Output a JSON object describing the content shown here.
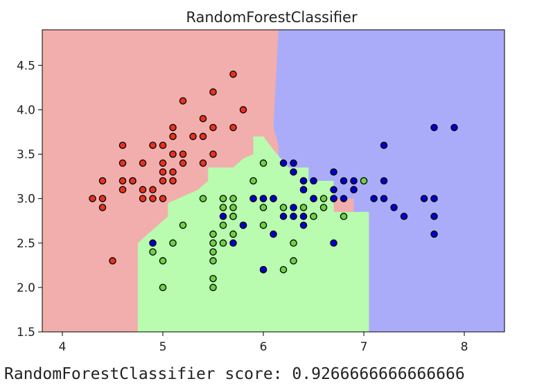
{
  "chart_data": {
    "type": "scatter",
    "title": "RandomForestClassifier",
    "xlabel": "",
    "ylabel": "",
    "xlim": [
      3.8,
      8.4
    ],
    "ylim": [
      1.5,
      4.9
    ],
    "x_ticks": [
      "4",
      "5",
      "6",
      "7",
      "8"
    ],
    "y_ticks": [
      "1.5",
      "2.0",
      "2.5",
      "3.0",
      "3.5",
      "4.0",
      "4.5"
    ],
    "grid": false,
    "legend": "none",
    "region_colors": {
      "class0": "#f2aeac",
      "class1": "#b9fbaf",
      "class2": "#abacf9"
    },
    "point_colors": {
      "class0": "#e8311e",
      "class1": "#6fd145",
      "class2": "#0000cc"
    },
    "decision_regions": {
      "class1": [
        [
          4.75,
          1.5
        ],
        [
          7.05,
          1.5
        ],
        [
          7.05,
          2.85
        ],
        [
          6.7,
          2.85
        ],
        [
          6.7,
          3.2
        ],
        [
          6.45,
          3.2
        ],
        [
          6.45,
          3.35
        ],
        [
          6.25,
          3.35
        ],
        [
          6.1,
          3.55
        ],
        [
          6.0,
          3.7
        ],
        [
          5.9,
          3.7
        ],
        [
          5.9,
          3.5
        ],
        [
          5.8,
          3.45
        ],
        [
          5.7,
          3.35
        ],
        [
          5.45,
          3.35
        ],
        [
          5.45,
          3.2
        ],
        [
          5.35,
          3.1
        ],
        [
          5.05,
          2.95
        ],
        [
          5.05,
          2.8
        ],
        [
          4.95,
          2.7
        ],
        [
          4.85,
          2.6
        ],
        [
          4.75,
          2.5
        ]
      ],
      "class2": [
        [
          6.15,
          4.9
        ],
        [
          8.4,
          4.9
        ],
        [
          8.4,
          1.5
        ],
        [
          7.05,
          1.5
        ],
        [
          7.05,
          2.85
        ],
        [
          6.9,
          2.85
        ],
        [
          6.9,
          3.0
        ],
        [
          6.55,
          3.0
        ],
        [
          6.55,
          2.5
        ],
        [
          6.2,
          2.5
        ],
        [
          6.2,
          2.9
        ],
        [
          5.85,
          2.9
        ],
        [
          5.85,
          3.15
        ],
        [
          6.15,
          3.3
        ],
        [
          6.15,
          3.6
        ],
        [
          6.1,
          3.8
        ]
      ]
    },
    "series": [
      {
        "name": "",
        "class": "class0",
        "points": [
          [
            5.1,
            3.5
          ],
          [
            4.9,
            3.0
          ],
          [
            4.7,
            3.2
          ],
          [
            4.6,
            3.1
          ],
          [
            5.0,
            3.6
          ],
          [
            5.4,
            3.9
          ],
          [
            4.6,
            3.4
          ],
          [
            5.0,
            3.4
          ],
          [
            4.4,
            2.9
          ],
          [
            4.9,
            3.1
          ],
          [
            5.4,
            3.7
          ],
          [
            4.8,
            3.4
          ],
          [
            4.8,
            3.0
          ],
          [
            4.3,
            3.0
          ],
          [
            5.8,
            4.0
          ],
          [
            5.7,
            4.4
          ],
          [
            5.1,
            3.8
          ],
          [
            5.7,
            3.8
          ],
          [
            5.4,
            3.4
          ],
          [
            5.1,
            3.7
          ],
          [
            4.6,
            3.6
          ],
          [
            5.1,
            3.3
          ],
          [
            4.8,
            3.1
          ],
          [
            5.0,
            3.2
          ],
          [
            5.2,
            3.5
          ],
          [
            5.2,
            3.4
          ],
          [
            4.7,
            3.2
          ],
          [
            5.2,
            4.1
          ],
          [
            5.5,
            4.2
          ],
          [
            5.0,
            3.0
          ],
          [
            5.5,
            3.5
          ],
          [
            4.4,
            3.0
          ],
          [
            4.5,
            2.3
          ],
          [
            4.4,
            3.2
          ],
          [
            5.3,
            3.7
          ],
          [
            5.1,
            3.2
          ],
          [
            5.0,
            3.3
          ],
          [
            4.6,
            3.2
          ],
          [
            4.9,
            3.6
          ],
          [
            5.5,
            3.8
          ]
        ]
      },
      {
        "name": "",
        "class": "class1",
        "points": [
          [
            5.5,
            2.3
          ],
          [
            5.7,
            2.8
          ],
          [
            4.9,
            2.4
          ],
          [
            5.2,
            2.7
          ],
          [
            5.0,
            2.0
          ],
          [
            5.9,
            3.0
          ],
          [
            6.0,
            2.2
          ],
          [
            5.6,
            2.9
          ],
          [
            5.6,
            3.0
          ],
          [
            5.8,
            2.7
          ],
          [
            6.2,
            2.2
          ],
          [
            5.6,
            2.5
          ],
          [
            5.9,
            3.2
          ],
          [
            6.3,
            2.5
          ],
          [
            6.6,
            3.0
          ],
          [
            6.8,
            2.8
          ],
          [
            6.7,
            3.0
          ],
          [
            6.0,
            2.9
          ],
          [
            5.7,
            2.6
          ],
          [
            5.5,
            2.4
          ],
          [
            5.8,
            2.7
          ],
          [
            5.4,
            3.0
          ],
          [
            6.0,
            3.4
          ],
          [
            6.3,
            2.3
          ],
          [
            5.6,
            3.0
          ],
          [
            5.5,
            2.5
          ],
          [
            5.5,
            2.6
          ],
          [
            5.0,
            2.3
          ],
          [
            5.6,
            2.7
          ],
          [
            5.7,
            3.0
          ],
          [
            5.7,
            2.9
          ],
          [
            6.2,
            2.9
          ],
          [
            5.1,
            2.5
          ],
          [
            5.7,
            2.8
          ],
          [
            6.0,
            3.0
          ],
          [
            6.4,
            2.9
          ],
          [
            6.1,
            3.0
          ],
          [
            6.6,
            2.9
          ],
          [
            7.0,
            3.2
          ],
          [
            6.5,
            2.8
          ],
          [
            5.5,
            2.1
          ],
          [
            6.0,
            2.7
          ],
          [
            6.4,
            3.2
          ],
          [
            5.5,
            2.0
          ]
        ]
      },
      {
        "name": "",
        "class": "class2",
        "points": [
          [
            6.3,
            3.3
          ],
          [
            7.1,
            3.0
          ],
          [
            6.5,
            3.0
          ],
          [
            7.6,
            3.0
          ],
          [
            7.3,
            2.9
          ],
          [
            7.2,
            3.6
          ],
          [
            6.5,
            3.2
          ],
          [
            6.4,
            2.7
          ],
          [
            6.8,
            3.0
          ],
          [
            6.4,
            3.2
          ],
          [
            7.7,
            3.8
          ],
          [
            7.7,
            2.6
          ],
          [
            6.9,
            3.2
          ],
          [
            7.7,
            2.8
          ],
          [
            6.7,
            3.3
          ],
          [
            7.2,
            3.2
          ],
          [
            6.2,
            2.8
          ],
          [
            6.1,
            3.0
          ],
          [
            6.4,
            2.8
          ],
          [
            7.2,
            3.0
          ],
          [
            7.4,
            2.8
          ],
          [
            7.9,
            3.8
          ],
          [
            6.3,
            2.8
          ],
          [
            6.1,
            2.6
          ],
          [
            7.7,
            3.0
          ],
          [
            6.3,
            3.4
          ],
          [
            6.4,
            3.1
          ],
          [
            6.0,
            3.0
          ],
          [
            6.9,
            3.1
          ],
          [
            6.7,
            3.1
          ],
          [
            5.8,
            2.7
          ],
          [
            6.8,
            3.2
          ],
          [
            6.7,
            2.5
          ],
          [
            6.2,
            3.4
          ],
          [
            5.9,
            3.0
          ],
          [
            4.9,
            2.5
          ],
          [
            6.0,
            2.2
          ],
          [
            6.7,
            3.0
          ],
          [
            6.5,
            3.0
          ],
          [
            5.6,
            2.8
          ],
          [
            6.3,
            2.9
          ],
          [
            5.7,
            2.5
          ],
          [
            6.9,
            3.1
          ],
          [
            6.4,
            3.1
          ]
        ]
      }
    ]
  },
  "score": {
    "text": "RandomForestClassifier score: 0.9266666666666666"
  }
}
